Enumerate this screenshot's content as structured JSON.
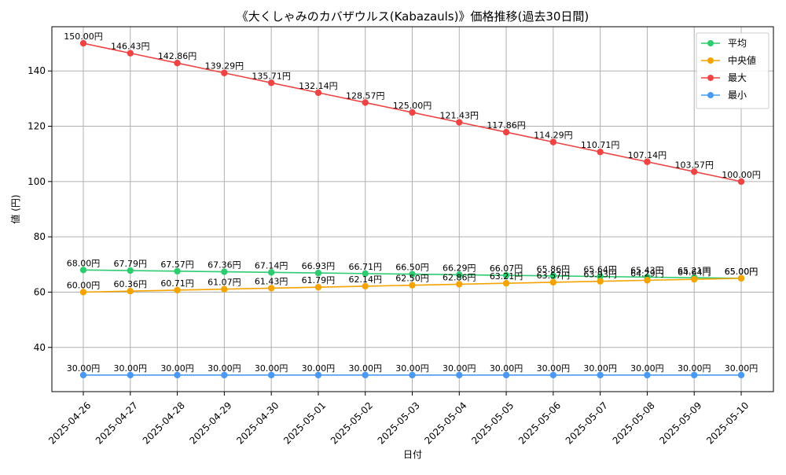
{
  "chart_data": {
    "type": "line",
    "title": "《大くしゃみのカバザウルス(Kabazauls)》価格推移(過去30日間)",
    "xlabel": "日付",
    "ylabel": "値 (円)",
    "ylim": [
      24,
      156
    ],
    "yticks": [
      40,
      60,
      80,
      100,
      120,
      140
    ],
    "grid": true,
    "legend_position": "top-right",
    "x": [
      "2025-04-26",
      "2025-04-27",
      "2025-04-28",
      "2025-04-29",
      "2025-04-30",
      "2025-05-01",
      "2025-05-02",
      "2025-05-03",
      "2025-05-04",
      "2025-05-05",
      "2025-05-06",
      "2025-05-07",
      "2025-05-08",
      "2025-05-09",
      "2025-05-10"
    ],
    "series": [
      {
        "name": "平均",
        "color": "#2ecc71",
        "values": [
          68.0,
          67.79,
          67.57,
          67.36,
          67.14,
          66.93,
          66.71,
          66.5,
          66.29,
          66.07,
          65.86,
          65.64,
          65.43,
          65.21,
          65.0
        ],
        "labels": [
          "68.00円",
          "67.79円",
          "67.57円",
          "67.36円",
          "67.14円",
          "66.93円",
          "66.71円",
          "66.50円",
          "66.29円",
          "66.07円",
          "65.86円",
          "65.64円",
          "65.43円",
          "65.21円",
          "65.00円"
        ]
      },
      {
        "name": "中央値",
        "color": "#f5a300",
        "values": [
          60.0,
          60.36,
          60.71,
          61.07,
          61.43,
          61.79,
          62.14,
          62.5,
          62.86,
          63.21,
          63.57,
          63.93,
          64.29,
          64.64,
          65.0
        ],
        "labels": [
          "60.00円",
          "60.36円",
          "60.71円",
          "61.07円",
          "61.43円",
          "61.79円",
          "62.14円",
          "62.50円",
          "62.86円",
          "63.21円",
          "63.57円",
          "63.93円",
          "64.29円",
          "64.64円",
          "65.00円"
        ]
      },
      {
        "name": "最大",
        "color": "#ef4444",
        "values": [
          150.0,
          146.43,
          142.86,
          139.29,
          135.71,
          132.14,
          128.57,
          125.0,
          121.43,
          117.86,
          114.29,
          110.71,
          107.14,
          103.57,
          100.0
        ],
        "labels": [
          "150.00円",
          "146.43円",
          "142.86円",
          "139.29円",
          "135.71円",
          "132.14円",
          "128.57円",
          "125.00円",
          "121.43円",
          "117.86円",
          "114.29円",
          "110.71円",
          "107.14円",
          "103.57円",
          "100.00円"
        ]
      },
      {
        "name": "最小",
        "color": "#4a9af5",
        "values": [
          30,
          30,
          30,
          30,
          30,
          30,
          30,
          30,
          30,
          30,
          30,
          30,
          30,
          30,
          30
        ],
        "labels": [
          "30.00円",
          "30.00円",
          "30.00円",
          "30.00円",
          "30.00円",
          "30.00円",
          "30.00円",
          "30.00円",
          "30.00円",
          "30.00円",
          "30.00円",
          "30.00円",
          "30.00円",
          "30.00円",
          "30.00円"
        ]
      }
    ]
  }
}
